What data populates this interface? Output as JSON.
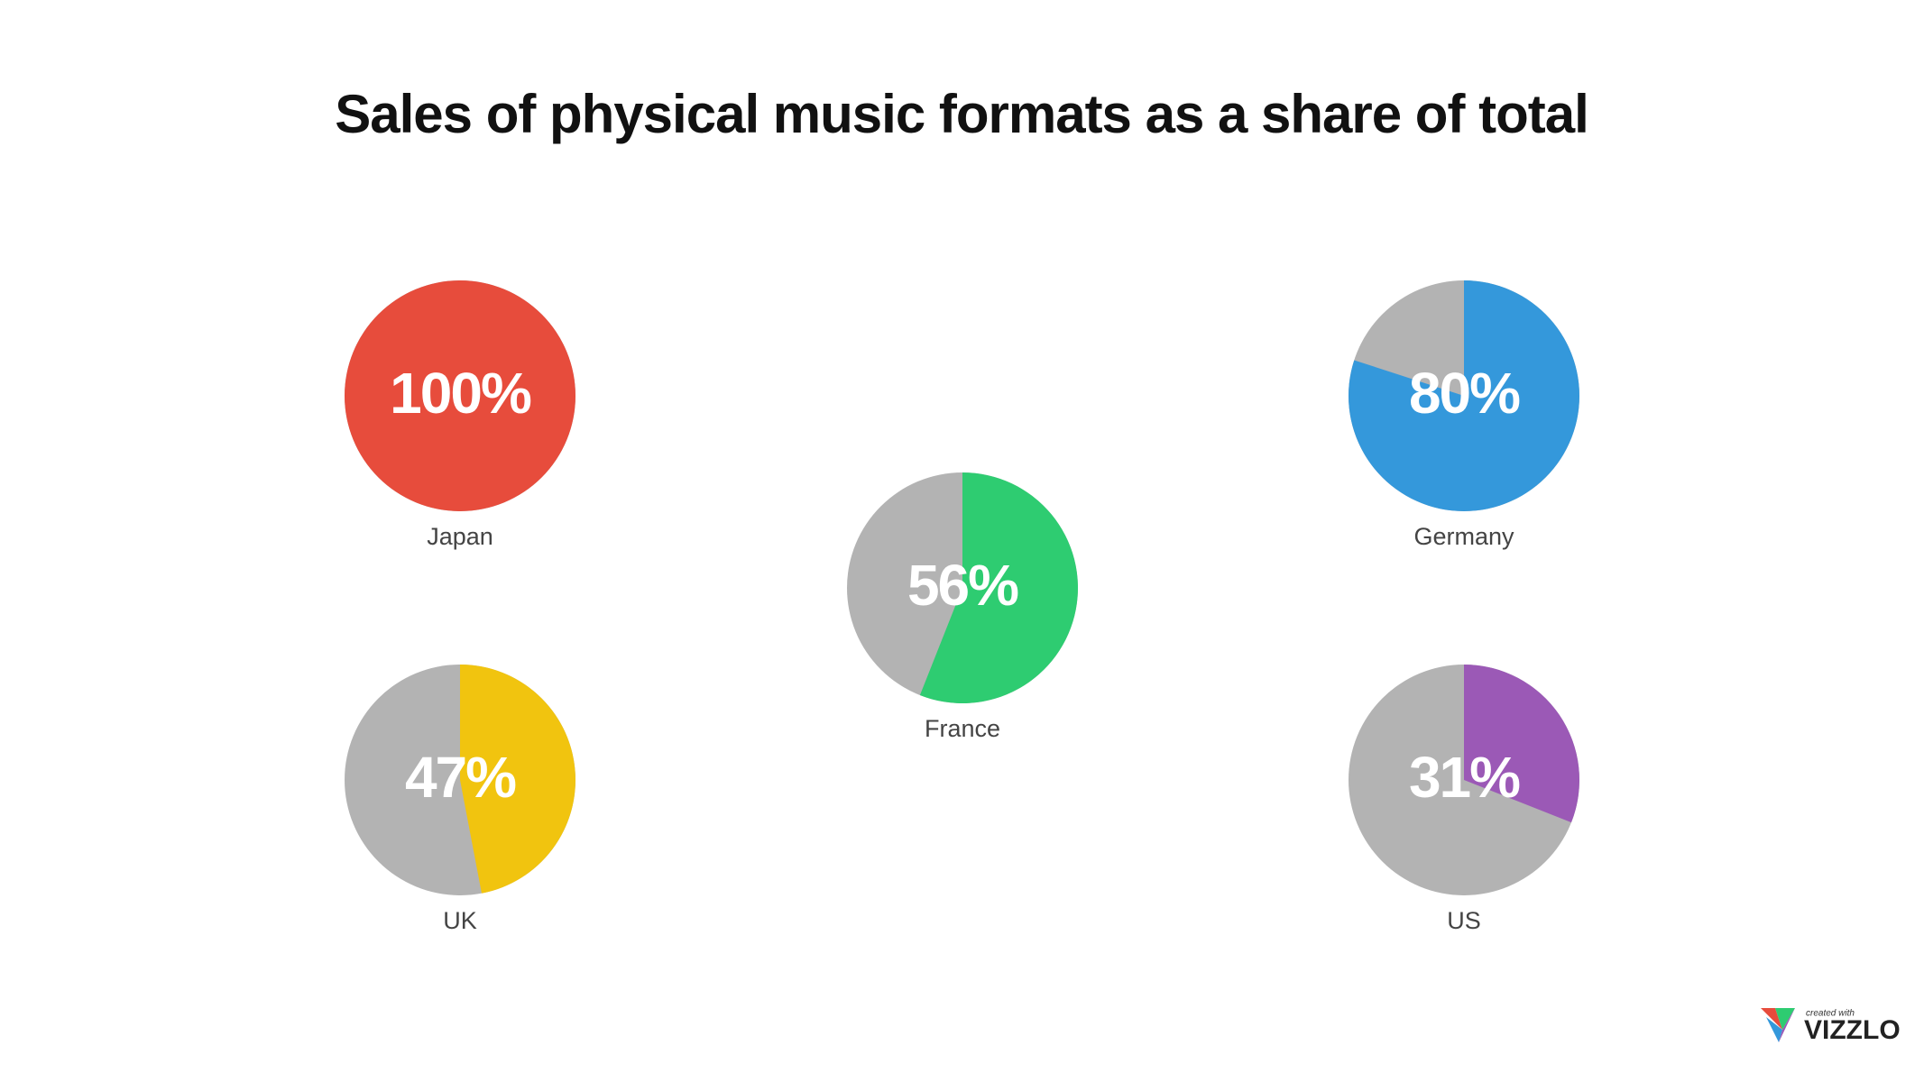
{
  "chart_data": {
    "type": "pie",
    "title": "Sales of physical music formats as a share of total",
    "categories": [
      "Japan",
      "France",
      "Germany",
      "UK",
      "US"
    ],
    "values": [
      100,
      56,
      80,
      47,
      31
    ],
    "value_labels": [
      "100%",
      "56%",
      "80%",
      "47%",
      "31%"
    ],
    "colors": [
      "#e74c3c",
      "#2ecc71",
      "#3498db",
      "#f1c40f",
      "#9b59b6"
    ],
    "rest_color": "#b3b3b3"
  },
  "branding": {
    "caption": "created with",
    "name": "VIZZLO"
  }
}
